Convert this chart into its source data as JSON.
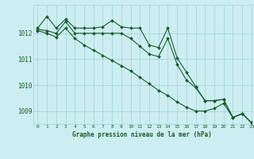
{
  "title": "Graphe pression niveau de la mer (hPa)",
  "background_color": "#cceef0",
  "grid_color": "#a0d0d8",
  "line_color": "#1a5c2a",
  "marker_color": "#1a5c2a",
  "xlim": [
    -0.5,
    23
  ],
  "ylim": [
    1008.5,
    1013.1
  ],
  "yticks": [
    1009,
    1010,
    1011,
    1012
  ],
  "xticks": [
    0,
    1,
    2,
    3,
    4,
    5,
    6,
    7,
    8,
    9,
    10,
    11,
    12,
    13,
    14,
    15,
    16,
    17,
    18,
    19,
    20,
    21,
    22,
    23
  ],
  "series": [
    [
      1012.2,
      1012.65,
      1012.2,
      1012.55,
      1012.2,
      1012.2,
      1012.2,
      1012.25,
      1012.5,
      1012.25,
      1012.2,
      1012.2,
      1011.55,
      1011.45,
      1012.2,
      1011.05,
      1010.5,
      1009.95,
      1009.4,
      1009.4,
      1009.45,
      1008.75,
      1008.9,
      1008.55
    ],
    [
      1012.15,
      1012.1,
      1012.0,
      1012.45,
      1012.0,
      1012.0,
      1012.0,
      1012.0,
      1012.0,
      1012.0,
      1011.8,
      1011.5,
      1011.2,
      1011.1,
      1011.8,
      1010.8,
      1010.2,
      1009.9,
      1009.4,
      1009.4,
      1009.45,
      1008.75,
      1008.9,
      1008.55
    ],
    [
      1012.1,
      1012.0,
      1011.85,
      1012.2,
      1011.8,
      1011.55,
      1011.35,
      1011.15,
      1010.95,
      1010.75,
      1010.55,
      1010.3,
      1010.05,
      1009.8,
      1009.6,
      1009.35,
      1009.15,
      1009.0,
      1009.0,
      1009.1,
      1009.3,
      1008.75,
      1008.9,
      1008.55
    ]
  ],
  "figsize": [
    3.2,
    2.0
  ],
  "dpi": 100
}
